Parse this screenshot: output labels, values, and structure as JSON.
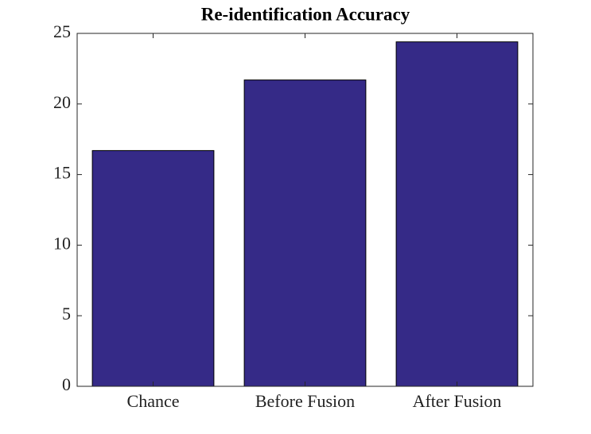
{
  "chart_data": {
    "type": "bar",
    "title": "Re-identification Accuracy",
    "categories": [
      "Chance",
      "Before Fusion",
      "After Fusion"
    ],
    "values": [
      16.7,
      21.7,
      24.4
    ],
    "color": "#352a87",
    "ylim": [
      0,
      25
    ],
    "yticks": [
      0,
      5,
      10,
      15,
      20,
      25
    ],
    "grid": false
  }
}
